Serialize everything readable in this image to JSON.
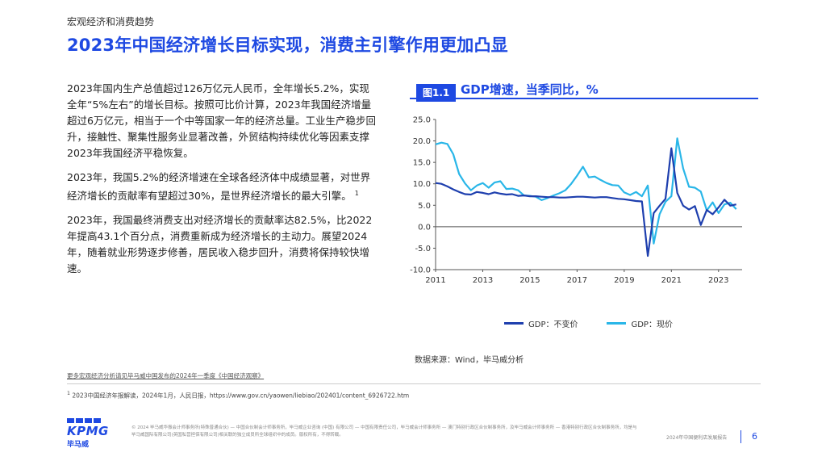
{
  "header": {
    "kicker": "宏观经济和消费趋势",
    "headline": "2023年中国经济增长目标实现，消费主引擎作用更加凸显"
  },
  "body": {
    "paragraphs": [
      "2023年国内生产总值超过126万亿元人民币，全年增长5.2%，实现全年“5%左右”的增长目标。按照可比价计算，2023年我国经济增量超过6万亿元，相当于一个中等国家一年的经济总量。工业生产稳步回升，接触性、聚集性服务业显著改善，外贸结构持续优化等因素支撑2023年我国经济平稳恢复。",
      "2023年，我国5.2%的经济增速在全球各经济体中成绩显著，对世界经济增长的贡献率有望超过30%，是世界经济增长的最大引擎。",
      "2023年，我国最终消费支出对经济增长的贡献率达82.5%，比2022年提高43.1个百分点，消费重新成为经济增长的主动力。展望2024年，随着就业形势逐步修善，居民收入稳步回升，消费将保持较快增速。"
    ],
    "footnote_ref": "1"
  },
  "figure": {
    "tag": "图1.1",
    "title": "GDP增速，当季同比，%",
    "source": "数据来源：Wind，毕马威分析"
  },
  "chart_data": {
    "type": "line",
    "title": "GDP增速，当季同比，%",
    "xlabel": "",
    "ylabel": "",
    "xlim": [
      2011,
      2024
    ],
    "ylim": [
      -10,
      25
    ],
    "yticks": [
      "25.0",
      "20.0",
      "15.0",
      "10.0",
      "5.0",
      "0.0",
      "-5.0",
      "-10.0"
    ],
    "xticks": [
      "2011",
      "2013",
      "2015",
      "2017",
      "2019",
      "2021",
      "2023"
    ],
    "grid": false,
    "legend": "bottom",
    "x": [
      "2011Q1",
      "2011Q2",
      "2011Q3",
      "2011Q4",
      "2012Q1",
      "2012Q2",
      "2012Q3",
      "2012Q4",
      "2013Q1",
      "2013Q2",
      "2013Q3",
      "2013Q4",
      "2014Q1",
      "2014Q2",
      "2014Q3",
      "2014Q4",
      "2015Q1",
      "2015Q2",
      "2015Q3",
      "2015Q4",
      "2016Q1",
      "2016Q2",
      "2016Q3",
      "2016Q4",
      "2017Q1",
      "2017Q2",
      "2017Q3",
      "2017Q4",
      "2018Q1",
      "2018Q2",
      "2018Q3",
      "2018Q4",
      "2019Q1",
      "2019Q2",
      "2019Q3",
      "2019Q4",
      "2020Q1",
      "2020Q2",
      "2020Q3",
      "2020Q4",
      "2021Q1",
      "2021Q2",
      "2021Q3",
      "2021Q4",
      "2022Q1",
      "2022Q2",
      "2022Q3",
      "2022Q4",
      "2023Q1",
      "2023Q2",
      "2023Q3",
      "2023Q4"
    ],
    "series": [
      {
        "name": "GDP：不变价",
        "color": "#1E3FAE",
        "values": [
          10.2,
          10.0,
          9.4,
          8.7,
          8.1,
          7.6,
          7.5,
          8.1,
          7.9,
          7.6,
          8.0,
          7.7,
          7.5,
          7.6,
          7.2,
          7.3,
          7.1,
          7.1,
          7.0,
          6.9,
          6.9,
          6.8,
          6.8,
          6.9,
          7.0,
          7.0,
          6.9,
          6.8,
          6.9,
          6.9,
          6.7,
          6.5,
          6.4,
          6.2,
          6.0,
          5.9,
          -6.8,
          3.2,
          4.9,
          6.5,
          18.3,
          7.9,
          4.9,
          4.0,
          4.8,
          0.4,
          3.9,
          2.9,
          4.5,
          6.3,
          4.9,
          5.2
        ]
      },
      {
        "name": "GDP：现价",
        "color": "#29B6E8",
        "values": [
          19.2,
          19.6,
          19.3,
          16.9,
          12.3,
          10.1,
          8.5,
          9.6,
          10.2,
          9.1,
          10.3,
          10.6,
          8.8,
          8.9,
          8.5,
          7.3,
          7.2,
          7.0,
          6.2,
          6.7,
          7.3,
          7.8,
          8.5,
          10.0,
          11.9,
          14.0,
          11.5,
          11.7,
          10.9,
          10.2,
          9.7,
          9.6,
          8.0,
          7.4,
          8.1,
          7.1,
          9.6,
          -3.9,
          2.9,
          5.8,
          7.1,
          20.6,
          13.6,
          9.3,
          9.1,
          8.2,
          3.8,
          5.7,
          3.2,
          5.2,
          5.6,
          4.1
        ]
      }
    ]
  },
  "notes": {
    "more_link": "更多宏观经济分析请见毕马威中国发布的2024年一季度《中国经济观察》",
    "footnote": "2023中国经济年报解读，2024年1月，人民日报，https://www.gov.cn/yaowen/liebiao/202401/content_6926722.htm",
    "footnote_num": "1"
  },
  "footer": {
    "logo": "KPMG",
    "logo_cn": "毕马威",
    "legal": "© 2024 毕马威华振会计师事务所(特殊普通合伙) — 中国合伙制会计师事务所，毕马威企业咨询 (中国) 有限公司 — 中国有限责任公司，毕马威会计师事务所 — 澳门特别行政区合伙制事务所，及毕马威会计师事务所 — 香港特别行政区合伙制事务所，均是与毕马威国际有限公司(英国私营担保有限公司)相关联的独立成员所全球组织中的成员。版权所有，不得转载。",
    "doc_name": "2024年中国便利店发展报告",
    "page": "6"
  }
}
